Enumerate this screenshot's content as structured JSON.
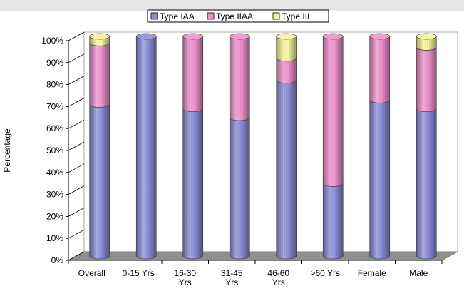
{
  "chart_data": {
    "type": "bar",
    "stacked": true,
    "percent_stacked": true,
    "three_d": true,
    "ylabel": "Percentage",
    "xlabel": "",
    "ylim": [
      0,
      100
    ],
    "y_tick_labels": [
      "0%",
      "10%",
      "20%",
      "30%",
      "40%",
      "50%",
      "60%",
      "70%",
      "80%",
      "90%",
      "100%"
    ],
    "categories": [
      "Overall",
      "0-15 Yrs",
      "16-30 Yrs",
      "31-45 Yrs",
      "46-60 Yrs",
      ">60 Yrs",
      "Female",
      "Male"
    ],
    "category_lines": [
      [
        "Overall"
      ],
      [
        "0-15 Yrs"
      ],
      [
        "16-30",
        "Yrs"
      ],
      [
        "31-45",
        "Yrs"
      ],
      [
        "46-60",
        "Yrs"
      ],
      [
        ">60 Yrs"
      ],
      [
        "Female"
      ],
      [
        "Male"
      ]
    ],
    "series": [
      {
        "name": "Type IAA",
        "color": "#8c8cd8",
        "values": [
          69,
          100,
          67,
          63,
          80,
          33,
          71,
          67
        ]
      },
      {
        "name": "Type IIAA",
        "color": "#ee90cc",
        "values": [
          28,
          0,
          33,
          37,
          10,
          67,
          29,
          28
        ]
      },
      {
        "name": "Type III",
        "color": "#f5f39a",
        "values": [
          3,
          0,
          0,
          0,
          10,
          0,
          0,
          5
        ]
      }
    ],
    "legend_position": "top",
    "grid": false,
    "background": "#e6e6e6",
    "floor_color": "#8f8f8f"
  }
}
